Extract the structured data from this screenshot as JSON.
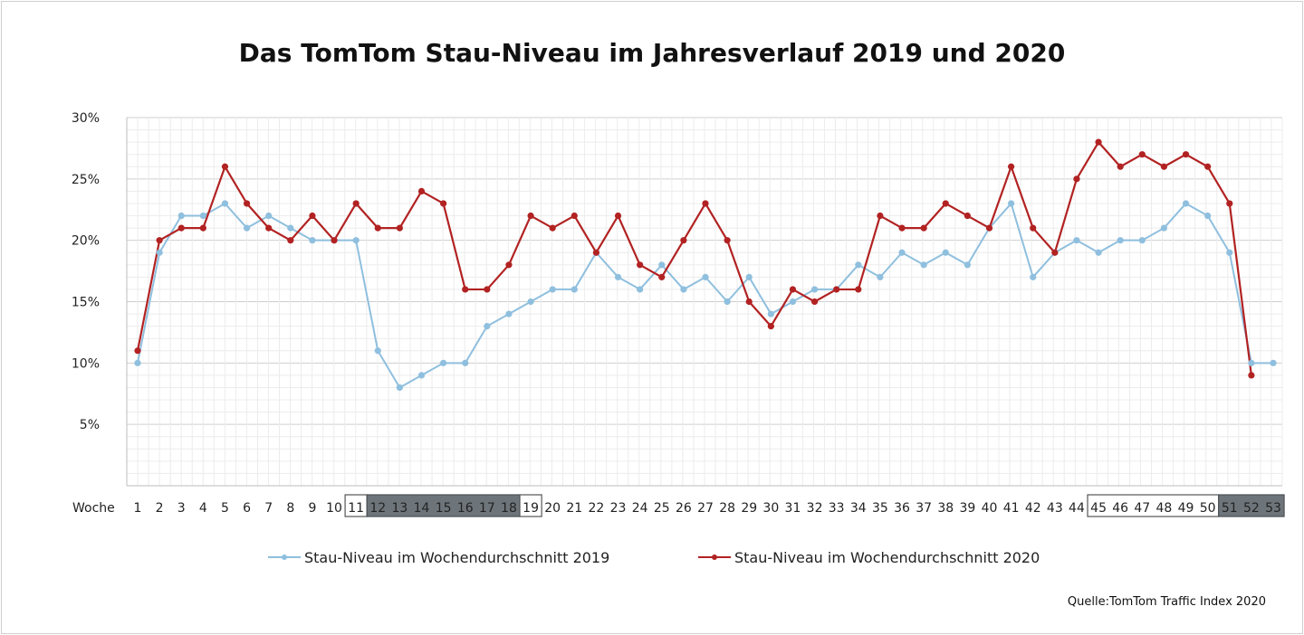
{
  "title": "Das TomTom Stau-Niveau im Jahresverlauf 2019 und 2020",
  "source": "Quelle:TomTom Traffic Index 2020",
  "colors": {
    "series_2019": "#8fbfde",
    "series_2020": "#b22222",
    "highlight_dark": "#6e757a"
  },
  "chart_data": {
    "type": "line",
    "title": "Das TomTom Stau-Niveau im Jahresverlauf 2019 und 2020",
    "xlabel": "Woche",
    "ylabel": "",
    "x": [
      1,
      2,
      3,
      4,
      5,
      6,
      7,
      8,
      9,
      10,
      11,
      12,
      13,
      14,
      15,
      16,
      17,
      18,
      19,
      20,
      21,
      22,
      23,
      24,
      25,
      26,
      27,
      28,
      29,
      30,
      31,
      32,
      33,
      34,
      35,
      36,
      37,
      38,
      39,
      40,
      41,
      42,
      43,
      44,
      45,
      46,
      47,
      48,
      49,
      50,
      51,
      52,
      53
    ],
    "ylim": [
      0,
      30
    ],
    "yticks": [
      5,
      10,
      15,
      20,
      25,
      30
    ],
    "ytick_labels": [
      "5%",
      "10%",
      "15%",
      "20%",
      "25%",
      "30%"
    ],
    "grid": true,
    "legend_position": "bottom",
    "highlighted_weeks": [
      {
        "from": 11,
        "to": 11,
        "style": "outlined"
      },
      {
        "from": 12,
        "to": 18,
        "style": "dark"
      },
      {
        "from": 19,
        "to": 19,
        "style": "outlined"
      },
      {
        "from": 45,
        "to": 50,
        "style": "outlined"
      },
      {
        "from": 51,
        "to": 53,
        "style": "dark"
      }
    ],
    "series": [
      {
        "name": "Stau-Niveau im Wochendurchschnitt 2019",
        "color": "#8fbfde",
        "values": [
          10,
          19,
          22,
          22,
          23,
          21,
          22,
          21,
          20,
          20,
          20,
          11,
          8,
          9,
          10,
          10,
          13,
          14,
          15,
          16,
          16,
          19,
          17,
          16,
          18,
          16,
          17,
          15,
          17,
          14,
          15,
          16,
          16,
          18,
          17,
          19,
          18,
          19,
          18,
          21,
          23,
          17,
          19,
          20,
          19,
          20,
          20,
          21,
          23,
          22,
          19,
          10,
          10
        ]
      },
      {
        "name": "Stau-Niveau im Wochendurchschnitt 2020",
        "color": "#b22222",
        "values": [
          11,
          20,
          21,
          21,
          26,
          23,
          21,
          20,
          22,
          20,
          23,
          21,
          21,
          24,
          23,
          16,
          16,
          18,
          22,
          21,
          22,
          19,
          22,
          18,
          17,
          20,
          23,
          20,
          15,
          13,
          16,
          15,
          16,
          16,
          22,
          21,
          21,
          23,
          22,
          21,
          26,
          21,
          19,
          25,
          28,
          26,
          27,
          26,
          27,
          26,
          23,
          9,
          null
        ]
      }
    ]
  }
}
